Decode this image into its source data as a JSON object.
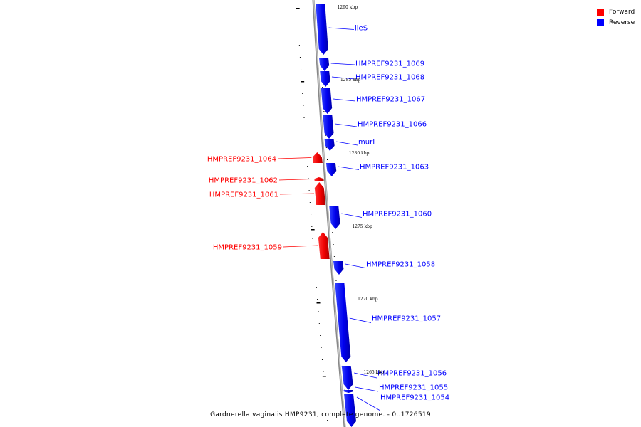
{
  "legend": [
    {
      "label": "Forward",
      "color": "#ff0000"
    },
    {
      "label": "Reverse",
      "color": "#0000ff"
    }
  ],
  "caption": "Gardnerella vaginalis HMP9231, complete genome. - 0..1726519",
  "scale_labels": [
    "1290 kbp",
    "1285 kbp",
    "1280 kbp",
    "1275 kbp",
    "1270 kbp",
    "1265 kbp"
  ],
  "genes": [
    {
      "name": "ileS",
      "strand": "reverse"
    },
    {
      "name": "HMPREF9231_1069",
      "strand": "reverse"
    },
    {
      "name": "HMPREF9231_1068",
      "strand": "reverse"
    },
    {
      "name": "HMPREF9231_1067",
      "strand": "reverse"
    },
    {
      "name": "HMPREF9231_1066",
      "strand": "reverse"
    },
    {
      "name": "murI",
      "strand": "reverse"
    },
    {
      "name": "HMPREF9231_1064",
      "strand": "forward"
    },
    {
      "name": "HMPREF9231_1063",
      "strand": "reverse"
    },
    {
      "name": "HMPREF9231_1062",
      "strand": "forward"
    },
    {
      "name": "HMPREF9231_1061",
      "strand": "forward"
    },
    {
      "name": "HMPREF9231_1060",
      "strand": "reverse"
    },
    {
      "name": "HMPREF9231_1059",
      "strand": "forward"
    },
    {
      "name": "HMPREF9231_1058",
      "strand": "reverse"
    },
    {
      "name": "HMPREF9231_1057",
      "strand": "reverse"
    },
    {
      "name": "HMPREF9231_1056",
      "strand": "reverse"
    },
    {
      "name": "HMPREF9231_1055",
      "strand": "reverse"
    },
    {
      "name": "HMPREF9231_1054",
      "strand": "reverse"
    }
  ]
}
